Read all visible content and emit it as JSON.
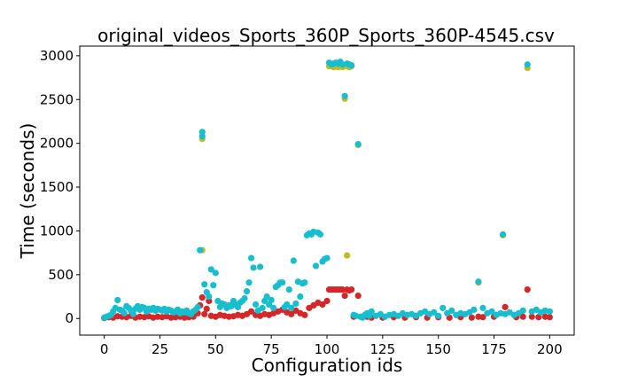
{
  "chart_data": {
    "type": "scatter",
    "title": "original_videos_Sports_360P_Sports_360P-4545.csv",
    "xlabel": "Configuration ids",
    "ylabel": "Time (seconds)",
    "xlim": [
      -11,
      211
    ],
    "ylim": [
      -190,
      3110
    ],
    "xticks": [
      0,
      25,
      50,
      75,
      100,
      125,
      150,
      175,
      200
    ],
    "yticks": [
      0,
      500,
      1000,
      1500,
      2000,
      2500,
      3000
    ],
    "grid": false,
    "legend": "none",
    "series": [
      {
        "color": "#d62728",
        "points": [
          [
            0,
            5
          ],
          [
            2,
            15
          ],
          [
            4,
            10
          ],
          [
            6,
            25
          ],
          [
            8,
            20
          ],
          [
            10,
            15
          ],
          [
            12,
            30
          ],
          [
            14,
            10
          ],
          [
            16,
            20
          ],
          [
            18,
            15
          ],
          [
            20,
            25
          ],
          [
            22,
            10
          ],
          [
            24,
            20
          ],
          [
            26,
            15
          ],
          [
            28,
            25
          ],
          [
            30,
            10
          ],
          [
            32,
            15
          ],
          [
            34,
            20
          ],
          [
            36,
            10
          ],
          [
            38,
            15
          ],
          [
            40,
            20
          ],
          [
            42,
            60
          ],
          [
            43,
            150
          ],
          [
            44,
            240
          ],
          [
            45,
            50
          ],
          [
            46,
            110
          ],
          [
            47,
            200
          ],
          [
            48,
            30
          ],
          [
            50,
            20
          ],
          [
            52,
            40
          ],
          [
            54,
            30
          ],
          [
            56,
            20
          ],
          [
            58,
            25
          ],
          [
            60,
            40
          ],
          [
            62,
            30
          ],
          [
            64,
            50
          ],
          [
            66,
            80
          ],
          [
            68,
            40
          ],
          [
            70,
            30
          ],
          [
            72,
            50
          ],
          [
            74,
            40
          ],
          [
            76,
            60
          ],
          [
            78,
            80
          ],
          [
            80,
            100
          ],
          [
            82,
            70
          ],
          [
            84,
            50
          ],
          [
            86,
            90
          ],
          [
            88,
            60
          ],
          [
            90,
            40
          ],
          [
            92,
            120
          ],
          [
            94,
            150
          ],
          [
            96,
            180
          ],
          [
            98,
            160
          ],
          [
            100,
            200
          ],
          [
            101,
            330
          ],
          [
            102,
            330
          ],
          [
            103,
            330
          ],
          [
            104,
            330
          ],
          [
            105,
            330
          ],
          [
            106,
            330
          ],
          [
            107,
            330
          ],
          [
            108,
            260
          ],
          [
            109,
            330
          ],
          [
            110,
            320
          ],
          [
            111,
            330
          ],
          [
            112,
            20
          ],
          [
            114,
            260
          ],
          [
            116,
            15
          ],
          [
            118,
            20
          ],
          [
            120,
            10
          ],
          [
            125,
            10
          ],
          [
            130,
            15
          ],
          [
            135,
            10
          ],
          [
            140,
            15
          ],
          [
            145,
            10
          ],
          [
            150,
            15
          ],
          [
            155,
            10
          ],
          [
            160,
            15
          ],
          [
            165,
            10
          ],
          [
            168,
            20
          ],
          [
            170,
            15
          ],
          [
            175,
            20
          ],
          [
            180,
            130
          ],
          [
            185,
            15
          ],
          [
            188,
            20
          ],
          [
            190,
            330
          ],
          [
            192,
            20
          ],
          [
            195,
            15
          ],
          [
            198,
            20
          ],
          [
            200,
            15
          ]
        ]
      },
      {
        "color": "#bcbd22",
        "points": [
          [
            44,
            2050
          ],
          [
            44,
            780
          ],
          [
            101,
            2880
          ],
          [
            103,
            2870
          ],
          [
            104,
            2880
          ],
          [
            105,
            2870
          ],
          [
            106,
            2880
          ],
          [
            107,
            2870
          ],
          [
            108,
            2510
          ],
          [
            109,
            2880
          ],
          [
            110,
            2870
          ],
          [
            111,
            2880
          ],
          [
            114,
            1980
          ],
          [
            109,
            720
          ],
          [
            168,
            410
          ],
          [
            179,
            950
          ],
          [
            190,
            2860
          ]
        ]
      },
      {
        "color": "#17becf",
        "points": [
          [
            0,
            10
          ],
          [
            1,
            20
          ],
          [
            2,
            30
          ],
          [
            3,
            40
          ],
          [
            4,
            80
          ],
          [
            5,
            120
          ],
          [
            6,
            210
          ],
          [
            7,
            100
          ],
          [
            8,
            90
          ],
          [
            9,
            60
          ],
          [
            10,
            140
          ],
          [
            11,
            120
          ],
          [
            12,
            90
          ],
          [
            13,
            50
          ],
          [
            14,
            110
          ],
          [
            15,
            140
          ],
          [
            16,
            100
          ],
          [
            17,
            130
          ],
          [
            18,
            120
          ],
          [
            19,
            80
          ],
          [
            20,
            110
          ],
          [
            21,
            100
          ],
          [
            22,
            120
          ],
          [
            23,
            90
          ],
          [
            24,
            110
          ],
          [
            25,
            100
          ],
          [
            26,
            90
          ],
          [
            27,
            110
          ],
          [
            28,
            80
          ],
          [
            29,
            100
          ],
          [
            30,
            90
          ],
          [
            31,
            70
          ],
          [
            32,
            80
          ],
          [
            33,
            100
          ],
          [
            34,
            60
          ],
          [
            35,
            80
          ],
          [
            36,
            70
          ],
          [
            37,
            90
          ],
          [
            38,
            60
          ],
          [
            39,
            50
          ],
          [
            40,
            80
          ],
          [
            41,
            100
          ],
          [
            42,
            130
          ],
          [
            43,
            780
          ],
          [
            44,
            2130
          ],
          [
            44,
            2080
          ],
          [
            45,
            390
          ],
          [
            46,
            300
          ],
          [
            47,
            250
          ],
          [
            48,
            560
          ],
          [
            49,
            380
          ],
          [
            50,
            520
          ],
          [
            51,
            200
          ],
          [
            52,
            130
          ],
          [
            53,
            170
          ],
          [
            54,
            160
          ],
          [
            55,
            120
          ],
          [
            56,
            150
          ],
          [
            57,
            140
          ],
          [
            58,
            200
          ],
          [
            59,
            160
          ],
          [
            60,
            130
          ],
          [
            61,
            180
          ],
          [
            62,
            200
          ],
          [
            63,
            230
          ],
          [
            64,
            310
          ],
          [
            65,
            410
          ],
          [
            66,
            690
          ],
          [
            67,
            580
          ],
          [
            68,
            160
          ],
          [
            69,
            90
          ],
          [
            70,
            590
          ],
          [
            71,
            120
          ],
          [
            72,
            200
          ],
          [
            73,
            250
          ],
          [
            74,
            160
          ],
          [
            75,
            210
          ],
          [
            76,
            120
          ],
          [
            77,
            360
          ],
          [
            78,
            380
          ],
          [
            79,
            410
          ],
          [
            80,
            410
          ],
          [
            81,
            130
          ],
          [
            82,
            160
          ],
          [
            83,
            330
          ],
          [
            84,
            120
          ],
          [
            85,
            660
          ],
          [
            86,
            170
          ],
          [
            87,
            420
          ],
          [
            88,
            250
          ],
          [
            89,
            400
          ],
          [
            90,
            410
          ],
          [
            91,
            950
          ],
          [
            92,
            970
          ],
          [
            93,
            960
          ],
          [
            94,
            990
          ],
          [
            95,
            600
          ],
          [
            96,
            980
          ],
          [
            97,
            960
          ],
          [
            98,
            650
          ],
          [
            99,
            680
          ],
          [
            100,
            690
          ],
          [
            101,
            2920
          ],
          [
            102,
            2900
          ],
          [
            103,
            2910
          ],
          [
            104,
            2920
          ],
          [
            105,
            2910
          ],
          [
            106,
            2930
          ],
          [
            107,
            2900
          ],
          [
            108,
            2540
          ],
          [
            109,
            2910
          ],
          [
            110,
            2900
          ],
          [
            111,
            2890
          ],
          [
            112,
            40
          ],
          [
            113,
            30
          ],
          [
            114,
            1990
          ],
          [
            115,
            20
          ],
          [
            116,
            10
          ],
          [
            117,
            40
          ],
          [
            118,
            60
          ],
          [
            119,
            30
          ],
          [
            120,
            80
          ],
          [
            122,
            30
          ],
          [
            124,
            50
          ],
          [
            126,
            20
          ],
          [
            128,
            40
          ],
          [
            130,
            50
          ],
          [
            132,
            30
          ],
          [
            134,
            60
          ],
          [
            136,
            40
          ],
          [
            138,
            50
          ],
          [
            140,
            30
          ],
          [
            142,
            60
          ],
          [
            144,
            80
          ],
          [
            146,
            50
          ],
          [
            148,
            70
          ],
          [
            150,
            30
          ],
          [
            152,
            120
          ],
          [
            154,
            60
          ],
          [
            156,
            90
          ],
          [
            158,
            40
          ],
          [
            160,
            60
          ],
          [
            162,
            50
          ],
          [
            164,
            70
          ],
          [
            166,
            100
          ],
          [
            168,
            420
          ],
          [
            170,
            120
          ],
          [
            172,
            60
          ],
          [
            174,
            80
          ],
          [
            176,
            40
          ],
          [
            178,
            60
          ],
          [
            179,
            960
          ],
          [
            180,
            50
          ],
          [
            182,
            70
          ],
          [
            184,
            40
          ],
          [
            186,
            60
          ],
          [
            188,
            90
          ],
          [
            190,
            2900
          ],
          [
            192,
            80
          ],
          [
            194,
            100
          ],
          [
            196,
            70
          ],
          [
            198,
            90
          ],
          [
            200,
            80
          ]
        ]
      }
    ]
  }
}
